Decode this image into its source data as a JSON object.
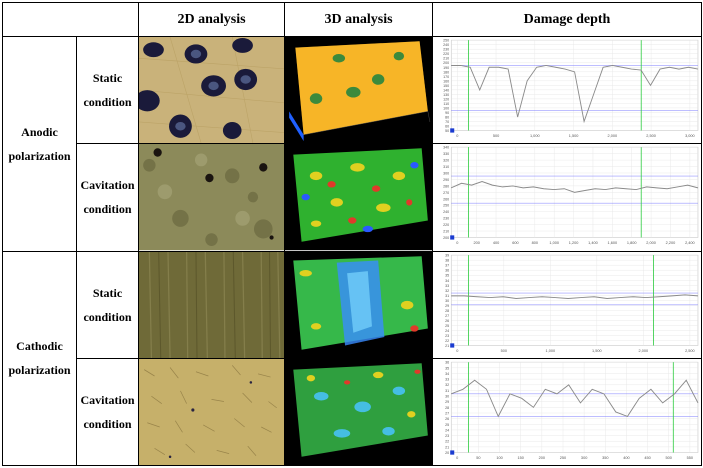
{
  "headers": {
    "blank": "",
    "col_2d": "2D analysis",
    "col_3d": "3D analysis",
    "col_depth": "Damage depth"
  },
  "groups": [
    {
      "label_line1": "Anodic",
      "label_line2": "polarization"
    },
    {
      "label_line1": "Cathodic",
      "label_line2": "polarization"
    }
  ],
  "conditions": [
    {
      "line1": "Static",
      "line2": "condition"
    },
    {
      "line1": "Cavitation",
      "line2": "condition"
    },
    {
      "line1": "Static",
      "line2": "condition"
    },
    {
      "line1": "Cavitation",
      "line2": "condition"
    }
  ],
  "plots": [
    {
      "y_ticks": [
        "250",
        "240",
        "230",
        "220",
        "210",
        "200",
        "190",
        "180",
        "170",
        "160",
        "150",
        "140",
        "130",
        "120",
        "110",
        "100",
        "90",
        "80",
        "70",
        "60",
        "50"
      ],
      "x_ticks": [
        "0",
        "500",
        "1,000",
        "1,500",
        "2,000",
        "2,500",
        "3,000"
      ]
    },
    {
      "y_ticks": [
        "340",
        "330",
        "320",
        "310",
        "300",
        "290",
        "280",
        "270",
        "260",
        "250",
        "240",
        "230",
        "220",
        "210",
        "200"
      ],
      "x_ticks": [
        "0",
        "200",
        "400",
        "600",
        "800",
        "1,000",
        "1,200",
        "1,400",
        "1,600",
        "1,800",
        "2,000",
        "2,200",
        "2,400"
      ]
    },
    {
      "y_ticks": [
        "39",
        "38",
        "37",
        "36",
        "35",
        "34",
        "33",
        "32",
        "31",
        "30",
        "29",
        "28",
        "27",
        "26",
        "25",
        "24",
        "23",
        "22",
        "21"
      ],
      "x_ticks": [
        "0",
        "500",
        "1,000",
        "1,500",
        "2,000",
        "2,500"
      ]
    },
    {
      "y_ticks": [
        "36",
        "35",
        "34",
        "33",
        "32",
        "31",
        "30",
        "29",
        "28",
        "27",
        "26",
        "25",
        "24",
        "23",
        "22",
        "21",
        "20"
      ],
      "x_ticks": [
        "0",
        "50",
        "100",
        "150",
        "200",
        "250",
        "300",
        "350",
        "400",
        "450",
        "500",
        "550"
      ]
    }
  ],
  "colors": {
    "plot_line": "#8a8a8a",
    "green_marker": "#2ecc40",
    "blue_marker": "#6c6cff",
    "grid": "#e6e6e6"
  }
}
